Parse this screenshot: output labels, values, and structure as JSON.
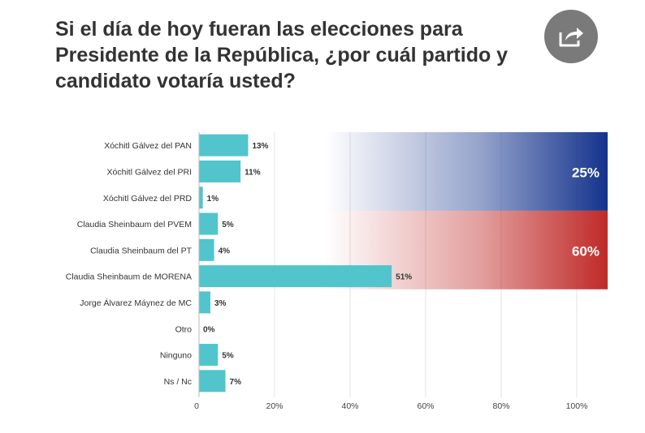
{
  "title_lines": [
    "Si el día de hoy fueran las elecciones para",
    "Presidente de la República, ¿por cuál partido y",
    "candidato votaría usted?"
  ],
  "share_icon": "share-icon",
  "colors": {
    "bar": "#52c4cc",
    "blue_block": "#14338c",
    "red_block": "#bf2a28",
    "title": "#333333",
    "share_bg": "#7a7a7a"
  },
  "chart_data": {
    "type": "bar",
    "orientation": "horizontal",
    "categories": [
      "Xóchitl Gálvez del PAN",
      "Xóchitl Gálvez del PRI",
      "Xóchitl Gálvez del PRD",
      "Claudia Sheinbaum del PVEM",
      "Claudia Sheinbaum del PT",
      "Claudia Sheinbaum de MORENA",
      "Jorge Álvarez Máynez de MC",
      "Otro",
      "Ninguno",
      "Ns / Nc"
    ],
    "values": [
      13,
      11,
      1,
      5,
      4,
      51,
      3,
      0,
      5,
      7
    ],
    "value_labels": [
      "13%",
      "11%",
      "1%",
      "5%",
      "4%",
      "51%",
      "3%",
      "0%",
      "5%",
      "7%"
    ],
    "xlim": [
      0,
      100
    ],
    "x_ticks": [
      0,
      20,
      40,
      60,
      80,
      100
    ],
    "x_tick_labels": [
      "0",
      "20%",
      "40%",
      "60%",
      "80%",
      "100%"
    ],
    "grid": true,
    "totals": [
      {
        "label": "25%",
        "value": 25,
        "categories": [
          0,
          1,
          2
        ],
        "color": "#14338c"
      },
      {
        "label": "60%",
        "value": 60,
        "categories": [
          3,
          4,
          5
        ],
        "color": "#bf2a28"
      }
    ]
  }
}
